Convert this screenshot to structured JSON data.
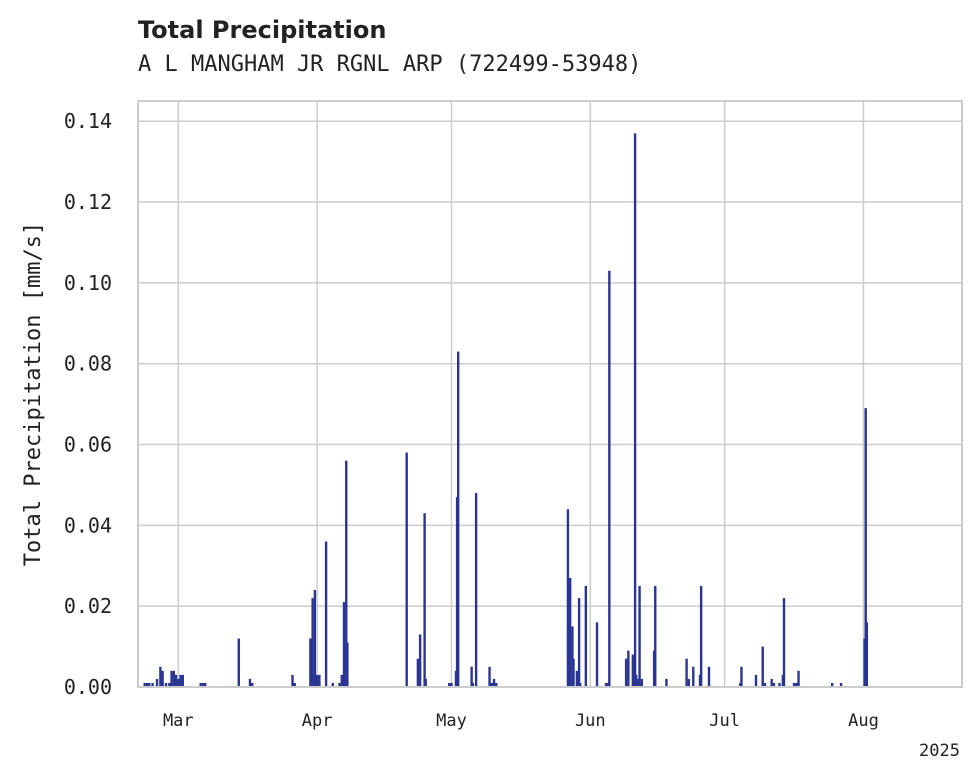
{
  "chart_data": {
    "type": "bar",
    "title": "Total Precipitation",
    "subtitle": "A L MANGHAM JR RGNL ARP (722499-53948)",
    "ylabel": "Total Precipitation [mm/s]",
    "xlabel": "",
    "year_label": "2025",
    "ylim": [
      0,
      0.145
    ],
    "xlim": [
      "2025-02-20",
      "2025-08-23"
    ],
    "yticks": [
      0.0,
      0.02,
      0.04,
      0.06,
      0.08,
      0.1,
      0.12,
      0.14
    ],
    "ytick_labels": [
      "0.00",
      "0.02",
      "0.04",
      "0.06",
      "0.08",
      "0.10",
      "0.12",
      "0.14"
    ],
    "xticks": [
      {
        "date": "2025-03-01",
        "label": "Mar"
      },
      {
        "date": "2025-04-01",
        "label": "Apr"
      },
      {
        "date": "2025-05-01",
        "label": "May"
      },
      {
        "date": "2025-06-01",
        "label": "Jun"
      },
      {
        "date": "2025-07-01",
        "label": "Jul"
      },
      {
        "date": "2025-08-01",
        "label": "Aug"
      }
    ],
    "grid": true,
    "color": "#2a3593",
    "series": [
      {
        "points": [
          [
            "2025-02-21T12:00",
            0.001
          ],
          [
            "2025-02-22T00:00",
            0.001
          ],
          [
            "2025-02-22T12:00",
            0.001
          ],
          [
            "2025-02-23T06:00",
            0.001
          ],
          [
            "2025-02-24T06:00",
            0.002
          ],
          [
            "2025-02-25T00:00",
            0.005
          ],
          [
            "2025-02-25T12:00",
            0.004
          ],
          [
            "2025-02-26T06:00",
            0.001
          ],
          [
            "2025-02-27T00:00",
            0.001
          ],
          [
            "2025-02-27T12:00",
            0.004
          ],
          [
            "2025-02-28T00:00",
            0.004
          ],
          [
            "2025-02-28T12:00",
            0.003
          ],
          [
            "2025-03-01T00:00",
            0.002
          ],
          [
            "2025-03-01T12:00",
            0.003
          ],
          [
            "2025-03-02T00:00",
            0.003
          ],
          [
            "2025-03-06T00:00",
            0.001
          ],
          [
            "2025-03-06T12:00",
            0.001
          ],
          [
            "2025-03-07T00:00",
            0.001
          ],
          [
            "2025-03-14T12:00",
            0.012
          ],
          [
            "2025-03-17T00:00",
            0.002
          ],
          [
            "2025-03-17T12:00",
            0.001
          ],
          [
            "2025-03-26T12:00",
            0.003
          ],
          [
            "2025-03-27T00:00",
            0.001
          ],
          [
            "2025-03-31T00:00",
            0.022
          ],
          [
            "2025-03-31T12:00",
            0.024
          ],
          [
            "2025-04-01T00:00",
            0.003
          ],
          [
            "2025-03-30T18:00",
            0.001
          ],
          [
            "2025-04-01T12:00",
            0.003
          ],
          [
            "2025-03-30T12:00",
            0.012
          ],
          [
            "2025-04-03T00:00",
            0.036
          ],
          [
            "2025-04-04T12:00",
            0.001
          ],
          [
            "2025-04-06T00:00",
            0.001
          ],
          [
            "2025-04-06T12:00",
            0.003
          ],
          [
            "2025-04-07T00:00",
            0.021
          ],
          [
            "2025-04-07T12:00",
            0.056
          ],
          [
            "2025-04-07T18:00",
            0.011
          ],
          [
            "2025-04-21T00:00",
            0.058
          ],
          [
            "2025-04-23T12:00",
            0.007
          ],
          [
            "2025-04-24T00:00",
            0.013
          ],
          [
            "2025-04-25T00:00",
            0.043
          ],
          [
            "2025-04-25T06:00",
            0.002
          ],
          [
            "2025-04-30T12:00",
            0.001
          ],
          [
            "2025-05-01T00:00",
            0.001
          ],
          [
            "2025-05-02T00:00",
            0.004
          ],
          [
            "2025-05-02T12:00",
            0.083
          ],
          [
            "2025-05-02T06:00",
            0.047
          ],
          [
            "2025-05-05T12:00",
            0.005
          ],
          [
            "2025-05-05T18:00",
            0.001
          ],
          [
            "2025-05-06T12:00",
            0.048
          ],
          [
            "2025-05-09T12:00",
            0.005
          ],
          [
            "2025-05-10T00:00",
            0.001
          ],
          [
            "2025-05-10T12:00",
            0.002
          ],
          [
            "2025-05-11T00:00",
            0.001
          ],
          [
            "2025-05-27T00:00",
            0.044
          ],
          [
            "2025-05-27T12:00",
            0.027
          ],
          [
            "2025-05-28T00:00",
            0.015
          ],
          [
            "2025-05-28T06:00",
            0.007
          ],
          [
            "2025-05-29T00:00",
            0.004
          ],
          [
            "2025-05-29T12:00",
            0.022
          ],
          [
            "2025-05-29T18:00",
            0.001
          ],
          [
            "2025-05-31T00:00",
            0.025
          ],
          [
            "2025-06-02T12:00",
            0.016
          ],
          [
            "2025-06:04T12:00",
            0.0
          ],
          [
            "2025-06-04T12:00",
            0.001
          ],
          [
            "2025-06-05T00:00",
            0.001
          ],
          [
            "2025-06-05T06:00",
            0.103
          ],
          [
            "2025-06-09T00:00",
            0.007
          ],
          [
            "2025-06-09T12:00",
            0.009
          ],
          [
            "2025-06-10T12:00",
            0.008
          ],
          [
            "2025-06-11T00:00",
            0.137
          ],
          [
            "2025-06-11T06:00",
            0.003
          ],
          [
            "2025-06-11T18:00",
            0.002
          ],
          [
            "2025-06-12T00:00",
            0.025
          ],
          [
            "2025-06-12T12:00",
            0.002
          ],
          [
            "2025-06-15T06:00",
            0.009
          ],
          [
            "2025-06-15T12:00",
            0.025
          ],
          [
            "2025-06-18T00:00",
            0.002
          ],
          [
            "2025-06-22T12:00",
            0.007
          ],
          [
            "2025-06-23T00:00",
            0.002
          ],
          [
            "2025-06-24T00:00",
            0.005
          ],
          [
            "2025-06-25T12:00",
            0.003
          ],
          [
            "2025-06-25T18:00",
            0.025
          ],
          [
            "2025-06-27T12:00",
            0.005
          ],
          [
            "2025-07-04T12:00",
            0.001
          ],
          [
            "2025-07-04T18:00",
            0.005
          ],
          [
            "2025-07-08T00:00",
            0.003
          ],
          [
            "2025-07-09T12:00",
            0.01
          ],
          [
            "2025-07-10T00:00",
            0.001
          ],
          [
            "2025-07-11T12:00",
            0.002
          ],
          [
            "2025-07-12T00:00",
            0.001
          ],
          [
            "2025-07-13T06:00",
            0.001
          ],
          [
            "2025-07-14T00:00",
            0.003
          ],
          [
            "2025-07-14T06:00",
            0.022
          ],
          [
            "2025-07-16T12:00",
            0.001
          ],
          [
            "2025-07-17T00:00",
            0.001
          ],
          [
            "2025-07-17T12:00",
            0.004
          ],
          [
            "2025-07-25T00:00",
            0.001
          ],
          [
            "2025-07-27T00:00",
            0.001
          ],
          [
            "2025-08-01T06:00",
            0.012
          ],
          [
            "2025-08-01T12:00",
            0.069
          ],
          [
            "2025-08-01T18:00",
            0.016
          ]
        ]
      }
    ]
  }
}
